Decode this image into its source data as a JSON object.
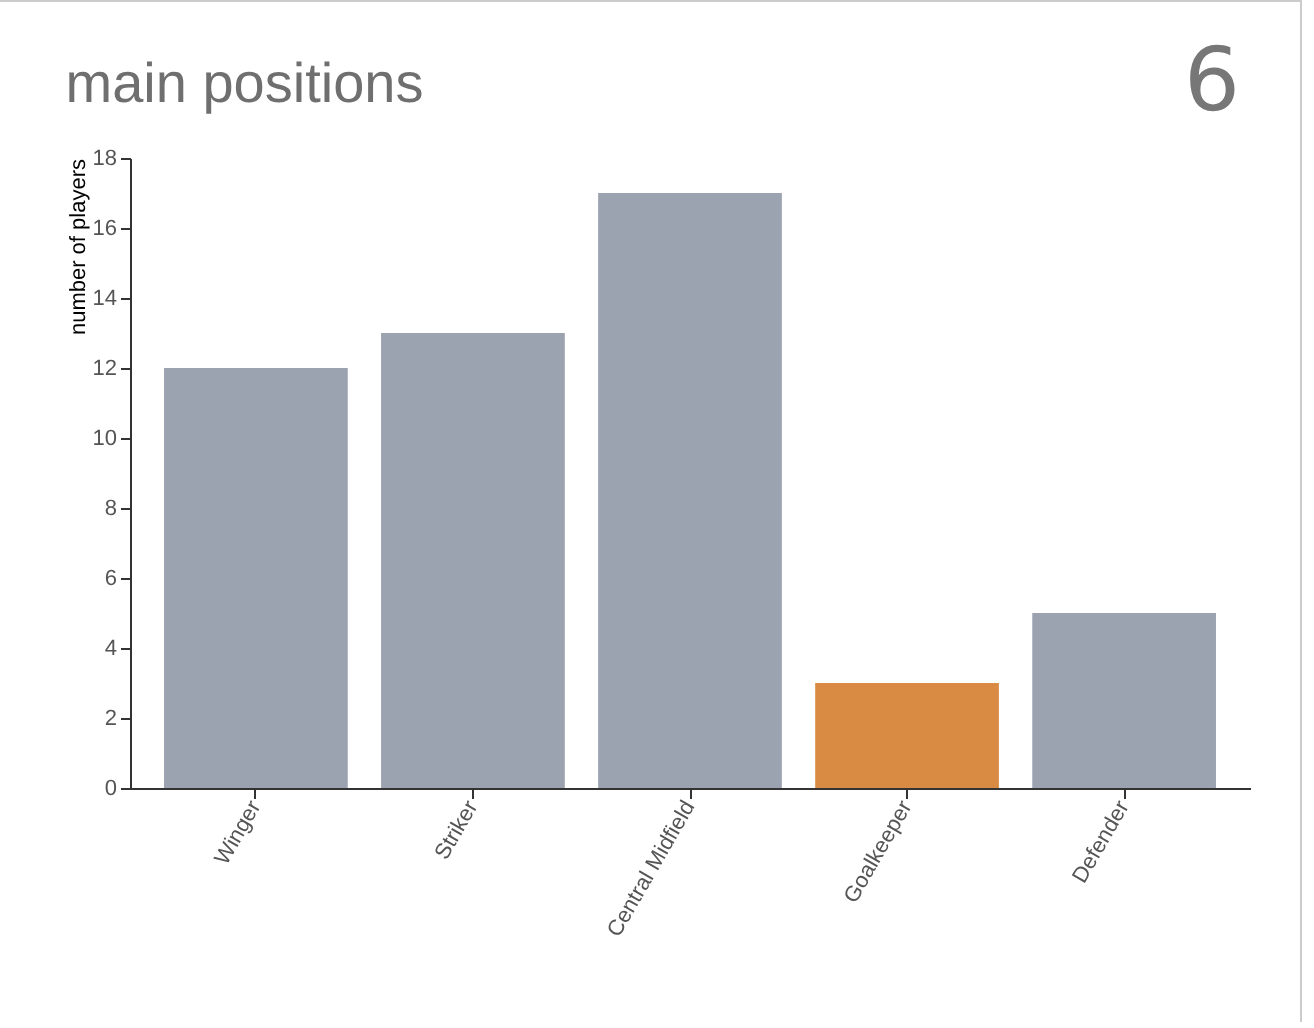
{
  "chart_data": {
    "type": "bar",
    "title": "main positions",
    "ylabel": "number of players",
    "categories": [
      "Winger",
      "Striker",
      "Central Midfield",
      "Goalkeeper",
      "Defender"
    ],
    "values": [
      12,
      13,
      17,
      3,
      5
    ],
    "colors": [
      "#9ba2b0",
      "#9ba2b0",
      "#9ba2b0",
      "#d98b44",
      "#9ba2b0"
    ],
    "ylim": [
      0,
      18
    ],
    "yticks": [
      0,
      2,
      4,
      6,
      8,
      10,
      12,
      14,
      16,
      18
    ],
    "grid": false,
    "annotations": [
      "6"
    ]
  }
}
